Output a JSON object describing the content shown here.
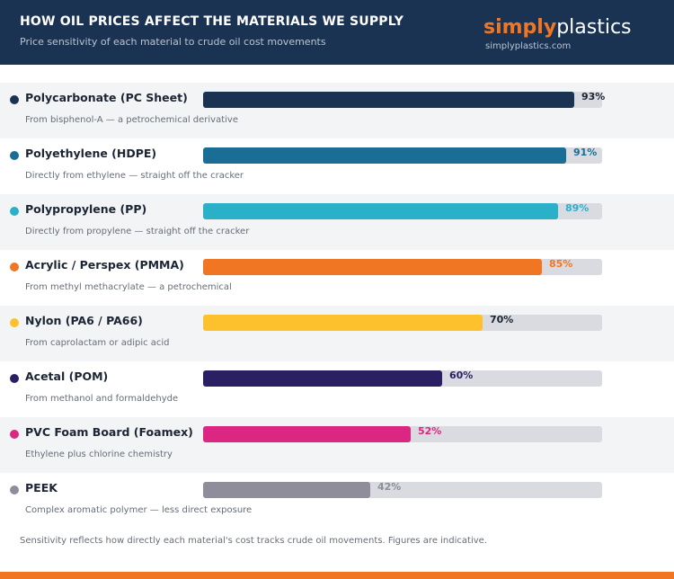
{
  "header": {
    "title": "HOW OIL PRICES AFFECT THE MATERIALS WE SUPPLY",
    "subtitle": "Price sensitivity of each material to crude oil cost movements"
  },
  "brand": {
    "name_part1": "simply",
    "name_part2": "plastics",
    "url": "simplyplastics.com"
  },
  "chart_data": {
    "type": "bar",
    "orientation": "horizontal",
    "title": "HOW OIL PRICES AFFECT THE MATERIALS WE SUPPLY",
    "subtitle": "Price sensitivity of each material to crude oil cost movements",
    "xlim": [
      0,
      100
    ],
    "unit": "%",
    "categories": [
      "Polycarbonate (PC Sheet)",
      "Polyethylene (HDPE)",
      "Polypropylene (PP)",
      "Acrylic / Perspex (PMMA)",
      "Nylon (PA6 / PA66)",
      "Acetal (POM)",
      "PVC Foam Board (Foamex)",
      "PEEK"
    ],
    "values": [
      93,
      91,
      89,
      85,
      70,
      60,
      52,
      42
    ],
    "value_labels": [
      "93%",
      "91%",
      "89%",
      "85%",
      "70%",
      "60%",
      "52%",
      "42%"
    ],
    "descriptions": [
      "From bisphenol-A — a petrochemical derivative",
      "Directly from ethylene — straight off the cracker",
      "Directly from propylene — straight off the cracker",
      "From methyl methacrylate — a petrochemical",
      "From caprolactam or adipic acid",
      "From methanol and formaldehyde",
      "Ethylene plus chlorine chemistry",
      "Complex aromatic polymer — less direct exposure"
    ],
    "colors": [
      "#1b3352",
      "#1a6e96",
      "#2ab0c9",
      "#f07624",
      "#fcc12c",
      "#2a1f63",
      "#db2782",
      "#8e8d99"
    ],
    "label_colors": [
      "#1b2533",
      "#1a6e96",
      "#2ab0c9",
      "#f07624",
      "#1b2533",
      "#2a1f63",
      "#db2782",
      "#8e8d99"
    ],
    "track_color": "#d9dbe1"
  },
  "footnote": "Sensitivity reflects how directly each material's cost tracks crude oil movements. Figures are indicative.",
  "colors": {
    "header_bg": "#1b3352",
    "accent": "#f07624"
  }
}
